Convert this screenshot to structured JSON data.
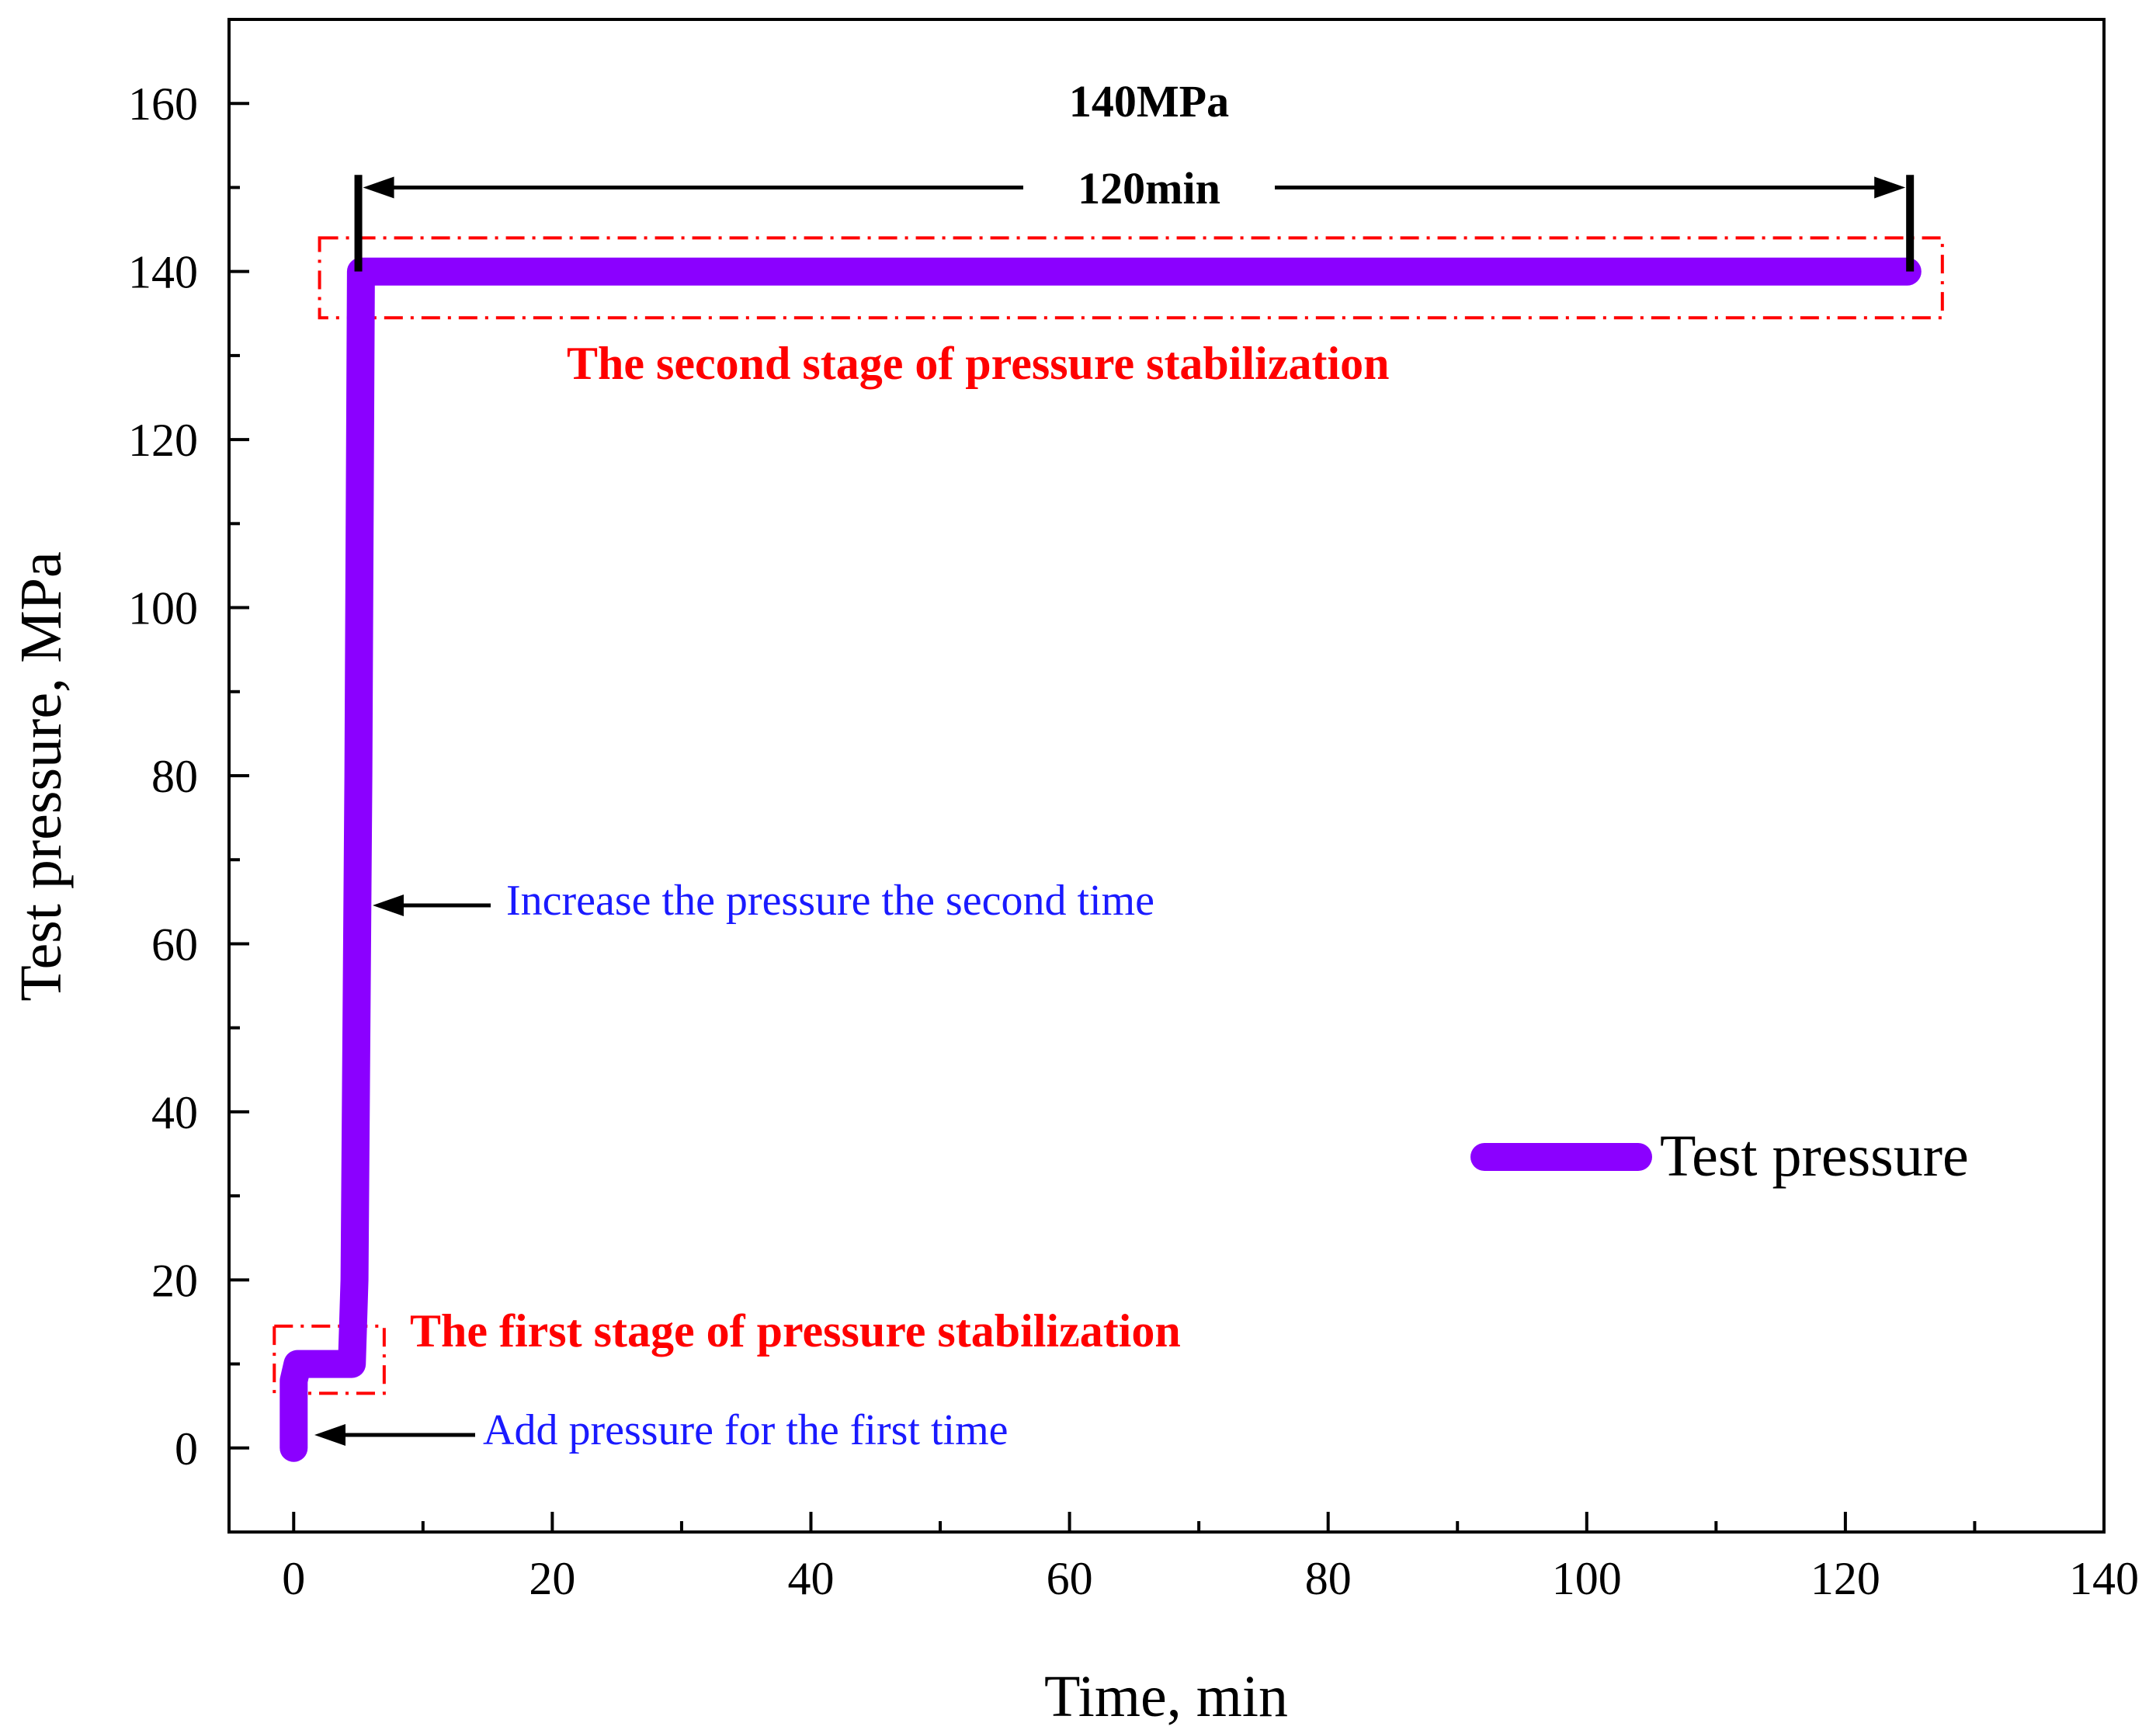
{
  "chart_data": {
    "type": "line",
    "xlabel": "Time, min",
    "ylabel": "Test pressure, MPa",
    "xlim": [
      -5,
      140
    ],
    "ylim": [
      -10,
      170
    ],
    "x_ticks": [
      0,
      20,
      40,
      60,
      80,
      100,
      120,
      140
    ],
    "y_ticks": [
      0,
      20,
      40,
      60,
      80,
      100,
      120,
      140,
      160
    ],
    "grid": false,
    "legend_position": "right",
    "series": [
      {
        "name": "Test pressure",
        "color": "#8b00ff",
        "x": [
          0,
          0,
          0.3,
          1,
          2,
          3,
          4.5,
          4.7,
          5,
          5.2,
          124.8
        ],
        "y": [
          0,
          8,
          10,
          10,
          10,
          10,
          10,
          20,
          80,
          140,
          140
        ]
      }
    ],
    "annotations": {
      "top_value": "140MPa",
      "duration": "120min",
      "second_stage": "The second stage of pressure stabilization",
      "first_stage": "The first stage of pressure stabilization",
      "increase_second": "Increase the pressure the second time",
      "add_first": "Add pressure for the first time"
    },
    "annotation_colors": {
      "stage": "#ff0000",
      "note": "#1a1aff"
    }
  }
}
